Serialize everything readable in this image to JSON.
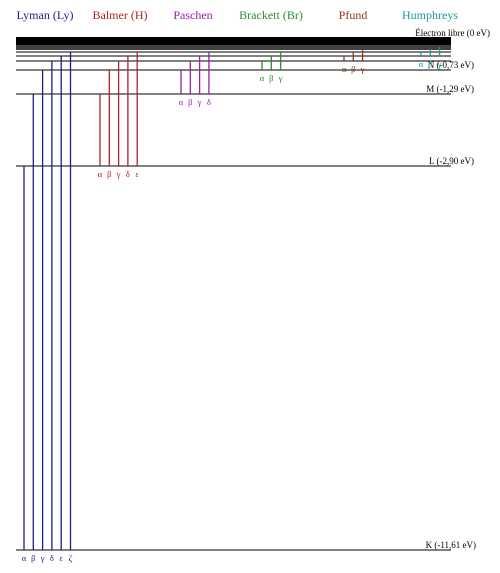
{
  "series": [
    {
      "name": "Lyman (Ly)",
      "color": "#1c1c8c",
      "lines": [
        "α",
        "β",
        "γ",
        "δ",
        "ε",
        "ζ"
      ]
    },
    {
      "name": "Balmer (H)",
      "color": "#b22222",
      "lines": [
        "α",
        "β",
        "γ",
        "δ",
        "ε"
      ]
    },
    {
      "name": "Paschen",
      "color": "#9b1fa8",
      "lines": [
        "α",
        "β",
        "γ",
        "δ"
      ]
    },
    {
      "name": "Brackett (Br)",
      "color": "#2e8b2e",
      "lines": [
        "α",
        "β",
        "γ"
      ]
    },
    {
      "name": "Pfund",
      "color": "#8b3a1a",
      "lines": [
        "α",
        "β",
        "γ"
      ]
    },
    {
      "name": "Humphreys",
      "color": "#1a9a9a",
      "lines": [
        "α",
        "β",
        "γ"
      ]
    }
  ],
  "levels": [
    "K (-11,61 eV)",
    "L (-2,90 eV)",
    "M (-1,29 eV)",
    "N (-0,73 eV)"
  ],
  "free_electron": "Électron libre (0 eV)"
}
